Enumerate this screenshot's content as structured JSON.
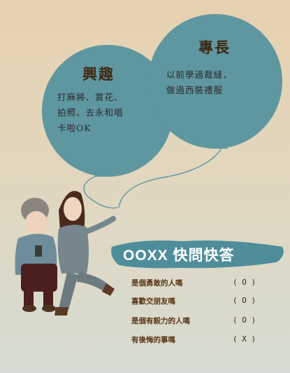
{
  "balloons": {
    "hobbies": {
      "title": "興趣",
      "text_line1": "打麻將、賞花、",
      "text_line2": "拍照、去永和唱",
      "text_line3": "卡啦OK"
    },
    "skills": {
      "title": "專長",
      "text_line1": "以前學過裁縫，",
      "text_line2": "做過西裝禮服"
    }
  },
  "quiz": {
    "title": "OOXX 快問快答",
    "items": [
      {
        "question": "是個勇敢的人嗎",
        "answer": "( O )"
      },
      {
        "question": "喜歡交朋友嗎",
        "answer": "( O )"
      },
      {
        "question": "是個有毅力的人嗎",
        "answer": "( O )"
      },
      {
        "question": "有後悔的事嗎",
        "answer": "( X )"
      }
    ]
  },
  "colors": {
    "balloon": "#5f97a0",
    "title": "#3f2a14",
    "quiz_text": "#5a3413",
    "brush": "#4f8d9b"
  }
}
